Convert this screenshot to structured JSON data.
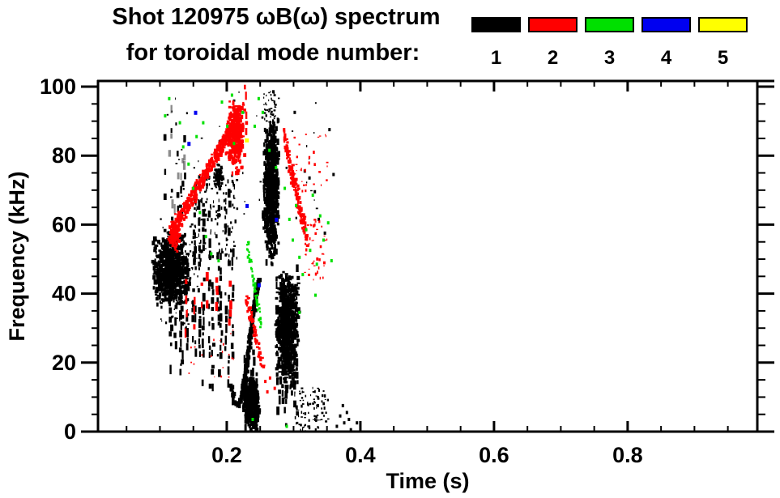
{
  "title": {
    "line1": "Shot 120975 ωB(ω) spectrum",
    "line2": "for toroidal mode number:"
  },
  "legend": {
    "modes": [
      {
        "label": "1",
        "color": "#000000"
      },
      {
        "label": "2",
        "color": "#ff0000"
      },
      {
        "label": "3",
        "color": "#00e000"
      },
      {
        "label": "4",
        "color": "#0000f0"
      },
      {
        "label": "5",
        "color": "#ffff00"
      }
    ]
  },
  "chart_data": {
    "type": "scatter",
    "title": "Shot 120975 ωB(ω) spectrum for toroidal mode number: 1 2 3 4 5",
    "xlabel": "Time (s)",
    "ylabel": "Frequency (kHz)",
    "xlim": [
      0.0073,
      0.9941
    ],
    "ylim": [
      0,
      101.65
    ],
    "grid": false,
    "legend_position": "top",
    "x_ticks": {
      "values": [
        0.2,
        0.4,
        0.6,
        0.8
      ],
      "labels": [
        "0.2",
        "0.4",
        "0.6",
        "0.8"
      ],
      "minor_step": 0.05
    },
    "y_ticks": {
      "values": [
        0,
        20,
        40,
        60,
        80,
        100
      ],
      "labels": [
        "0",
        "20",
        "40",
        "60",
        "80",
        "100"
      ],
      "minor_step": 5
    },
    "series": [
      {
        "name": "n=1",
        "color": "#000000"
      },
      {
        "name": "n=2",
        "color": "#ff0000"
      },
      {
        "name": "n=3",
        "color": "#00e000"
      },
      {
        "name": "n=4",
        "color": "#0000f0"
      },
      {
        "name": "n=5",
        "color": "#ffff00"
      }
    ],
    "structures": [
      {
        "mode": 1,
        "kind": "blob",
        "t": [
          0.086,
          0.142
        ],
        "f": [
          36,
          59
        ],
        "n": 700,
        "w": [
          2,
          5
        ],
        "h": [
          2,
          6
        ],
        "gauss": true
      },
      {
        "mode": 1,
        "kind": "blob",
        "t": [
          0.088,
          0.158
        ],
        "f": [
          28,
          62
        ],
        "n": 180,
        "w": [
          1,
          3
        ],
        "h": [
          1,
          4
        ],
        "gauss": true
      },
      {
        "mode": 1,
        "kind": "streaks",
        "t": [
          0.112,
          0.212
        ],
        "count": 16,
        "fLow": [
          10,
          26
        ],
        "fHigh": [
          42,
          74
        ],
        "fill": 0.55
      },
      {
        "mode": 1,
        "kind": "streaks",
        "t": [
          0.104,
          0.138
        ],
        "count": 7,
        "fLow": [
          55,
          66
        ],
        "fHigh": [
          86,
          99
        ],
        "fill": 0.3,
        "faint": true
      },
      {
        "mode": 1,
        "kind": "curve",
        "pts": [
          [
            0.204,
            14
          ],
          [
            0.209,
            9
          ],
          [
            0.215,
            8
          ],
          [
            0.221,
            12
          ],
          [
            0.227,
            19
          ],
          [
            0.232,
            27
          ],
          [
            0.237,
            34
          ],
          [
            0.242,
            41
          ],
          [
            0.245,
            45
          ]
        ],
        "thick": 4
      },
      {
        "mode": 1,
        "kind": "blob",
        "t": [
          0.221,
          0.247
        ],
        "f": [
          0,
          17
        ],
        "n": 430,
        "w": [
          2,
          5
        ],
        "h": [
          2,
          6
        ],
        "gauss": true
      },
      {
        "mode": 1,
        "kind": "streaks",
        "t": [
          0.222,
          0.246
        ],
        "count": 5,
        "fLow": [
          0,
          4
        ],
        "fHigh": [
          17,
          26
        ],
        "fill": 0.65
      },
      {
        "mode": 1,
        "kind": "blob",
        "t": [
          0.252,
          0.277
        ],
        "f": [
          48,
          93
        ],
        "n": 620,
        "w": [
          2,
          4
        ],
        "h": [
          3,
          8
        ],
        "gauss": true
      },
      {
        "mode": 1,
        "kind": "blob",
        "t": [
          0.254,
          0.273
        ],
        "f": [
          89,
          99
        ],
        "n": 45,
        "w": [
          1,
          3
        ],
        "h": [
          1,
          3
        ]
      },
      {
        "mode": 1,
        "kind": "blob",
        "t": [
          0.27,
          0.307
        ],
        "f": [
          12,
          48
        ],
        "n": 620,
        "w": [
          2,
          5
        ],
        "h": [
          2,
          6
        ],
        "gauss": true
      },
      {
        "mode": 1,
        "kind": "streaks",
        "t": [
          0.272,
          0.306
        ],
        "count": 8,
        "fLow": [
          2,
          10
        ],
        "fHigh": [
          40,
          52
        ],
        "fill": 0.5
      },
      {
        "mode": 1,
        "kind": "blob",
        "t": [
          0.3,
          0.352
        ],
        "f": [
          0,
          13
        ],
        "n": 90,
        "w": [
          1,
          3
        ],
        "h": [
          1,
          4
        ]
      },
      {
        "mode": 1,
        "kind": "specks",
        "pts": [
          [
            0.363,
            2
          ],
          [
            0.368,
            5
          ],
          [
            0.372,
            8
          ],
          [
            0.374,
            3
          ],
          [
            0.378,
            6
          ],
          [
            0.381,
            4
          ],
          [
            0.384,
            1
          ],
          [
            0.393,
            3
          ]
        ]
      },
      {
        "mode": 1,
        "kind": "blob",
        "t": [
          0.1,
          0.34
        ],
        "f": [
          55,
          99
        ],
        "n": 55,
        "w": [
          1,
          3
        ],
        "h": [
          1,
          3
        ]
      },
      {
        "mode": 1,
        "kind": "blob",
        "t": [
          0.145,
          0.215
        ],
        "f": [
          50,
          75
        ],
        "n": 130,
        "w": [
          1,
          3
        ],
        "h": [
          2,
          5
        ]
      },
      {
        "mode": 1,
        "kind": "blob",
        "t": [
          0.178,
          0.194
        ],
        "f": [
          70,
          78
        ],
        "n": 70,
        "w": [
          2,
          4
        ],
        "h": [
          2,
          4
        ],
        "gauss": true
      },
      {
        "mode": 1,
        "kind": "specks",
        "pts": [
          [
            0.315,
            76
          ],
          [
            0.322,
            74
          ],
          [
            0.33,
            70
          ],
          [
            0.336,
            62
          ],
          [
            0.345,
            58
          ],
          [
            0.352,
            88
          ],
          [
            0.358,
            75
          ],
          [
            0.3,
            93
          ],
          [
            0.268,
            99
          ]
        ]
      },
      {
        "mode": 2,
        "kind": "band",
        "from": [
          0.113,
          57
        ],
        "to": [
          0.214,
          91
        ],
        "width": 4.5,
        "n": 420,
        "w": [
          2,
          4
        ],
        "h": [
          2,
          5
        ]
      },
      {
        "mode": 2,
        "kind": "blob",
        "t": [
          0.11,
          0.13
        ],
        "f": [
          52,
          64
        ],
        "n": 90,
        "w": [
          2,
          4
        ],
        "h": [
          2,
          5
        ],
        "gauss": true
      },
      {
        "mode": 2,
        "kind": "blob",
        "t": [
          0.196,
          0.226
        ],
        "f": [
          75,
          98
        ],
        "n": 310,
        "w": [
          2,
          4
        ],
        "h": [
          2,
          6
        ],
        "gauss": true
      },
      {
        "mode": 2,
        "kind": "streaks",
        "t": [
          0.135,
          0.205
        ],
        "count": 7,
        "fLow": [
          28,
          36
        ],
        "fHigh": [
          40,
          48
        ],
        "fill": 0.4
      },
      {
        "mode": 2,
        "kind": "band",
        "from": [
          0.228,
          39
        ],
        "to": [
          0.252,
          19
        ],
        "width": 3,
        "n": 70,
        "w": [
          2,
          4
        ],
        "h": [
          2,
          4
        ]
      },
      {
        "mode": 2,
        "kind": "specks",
        "pts": [
          [
            0.256,
            15
          ],
          [
            0.259,
            12
          ],
          [
            0.263,
            16
          ],
          [
            0.27,
            13
          ]
        ]
      },
      {
        "mode": 2,
        "kind": "band",
        "from": [
          0.284,
          86
        ],
        "to": [
          0.318,
          56
        ],
        "width": 5,
        "n": 150,
        "w": [
          2,
          4
        ],
        "h": [
          2,
          5
        ]
      },
      {
        "mode": 2,
        "kind": "blob",
        "t": [
          0.315,
          0.35
        ],
        "f": [
          44,
          62
        ],
        "n": 45,
        "w": [
          1,
          3
        ],
        "h": [
          1,
          4
        ]
      },
      {
        "mode": 2,
        "kind": "blob",
        "t": [
          0.3,
          0.35
        ],
        "f": [
          70,
          87
        ],
        "n": 30,
        "w": [
          1,
          3
        ],
        "h": [
          1,
          4
        ]
      },
      {
        "mode": 2,
        "kind": "streaks",
        "t": [
          0.225,
          0.231
        ],
        "count": 1,
        "fLow": [
          84,
          86
        ],
        "fHigh": [
          98,
          101
        ],
        "fill": 0.6
      },
      {
        "mode": 2,
        "kind": "blob",
        "t": [
          0.14,
          0.21
        ],
        "f": [
          15,
          30
        ],
        "n": 20,
        "w": [
          1,
          2
        ],
        "h": [
          1,
          3
        ]
      },
      {
        "mode": 3,
        "kind": "band",
        "from": [
          0.229,
          55
        ],
        "to": [
          0.25,
          31
        ],
        "width": 3,
        "n": 55,
        "w": [
          2,
          3
        ],
        "h": [
          2,
          4
        ]
      },
      {
        "mode": 3,
        "kind": "specks",
        "pts": [
          [
            0.106,
            92
          ],
          [
            0.112,
            97
          ],
          [
            0.128,
            90
          ],
          [
            0.133,
            83
          ],
          [
            0.141,
            78
          ],
          [
            0.148,
            71
          ],
          [
            0.153,
            86
          ],
          [
            0.158,
            64
          ],
          [
            0.163,
            90
          ],
          [
            0.167,
            57
          ],
          [
            0.175,
            52
          ],
          [
            0.186,
            50
          ],
          [
            0.191,
            96
          ],
          [
            0.199,
            89
          ],
          [
            0.206,
            98
          ],
          [
            0.209,
            84
          ],
          [
            0.222,
            93
          ],
          [
            0.24,
            89
          ],
          [
            0.246,
            97
          ],
          [
            0.252,
            93
          ],
          [
            0.262,
            82
          ],
          [
            0.272,
            77
          ],
          [
            0.285,
            71
          ],
          [
            0.292,
            62
          ],
          [
            0.297,
            56
          ],
          [
            0.302,
            66
          ],
          [
            0.307,
            51
          ],
          [
            0.312,
            46
          ],
          [
            0.317,
            59
          ],
          [
            0.323,
            53
          ],
          [
            0.327,
            69
          ],
          [
            0.333,
            49
          ],
          [
            0.338,
            63
          ],
          [
            0.343,
            56
          ],
          [
            0.35,
            61
          ],
          [
            0.355,
            50
          ],
          [
            0.237,
            4
          ],
          [
            0.288,
            2
          ],
          [
            0.307,
            35
          ],
          [
            0.331,
            40
          ]
        ]
      },
      {
        "mode": 4,
        "kind": "specks",
        "s": [
          4,
          5
        ],
        "pts": [
          [
            0.141,
            84
          ],
          [
            0.151,
            93
          ],
          [
            0.228,
            66
          ],
          [
            0.246,
            43
          ],
          [
            0.272,
            62
          ]
        ]
      },
      {
        "mode": 5,
        "kind": "specks",
        "s": [
          5,
          5
        ],
        "pts": [
          [
            0.227,
            85
          ]
        ]
      }
    ]
  }
}
